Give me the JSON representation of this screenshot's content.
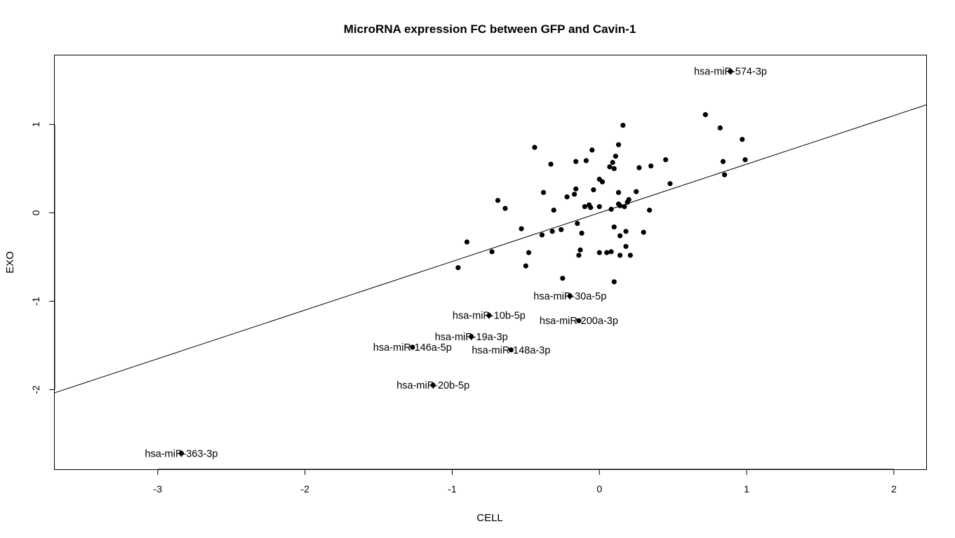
{
  "chart_data": {
    "type": "scatter",
    "title": "MicroRNA expression FC between GFP and Cavin-1",
    "xlabel": "CELL",
    "ylabel": "EXO",
    "xlim": [
      -3.7,
      2.22
    ],
    "ylim": [
      -2.9,
      1.78
    ],
    "xticks": [
      -3,
      -2,
      -1,
      0,
      1,
      2
    ],
    "yticks": [
      -2,
      -1,
      0,
      1
    ],
    "regression_line": {
      "intercept": 0.0,
      "slope": 0.55
    },
    "labeled_points": [
      {
        "label": "hsa-miR-574-3p",
        "x": 0.89,
        "y": 1.6
      },
      {
        "label": "hsa-miR-30a-5p",
        "x": -0.2,
        "y": -0.94
      },
      {
        "label": "hsa-miR-10b-5p",
        "x": -0.75,
        "y": -1.16
      },
      {
        "label": "hsa-miR-200a-3p",
        "x": -0.14,
        "y": -1.22
      },
      {
        "label": "hsa-miR-19a-3p",
        "x": -0.87,
        "y": -1.4
      },
      {
        "label": "hsa-miR-146a-5p",
        "x": -1.27,
        "y": -1.52
      },
      {
        "label": "hsa-miR-148a-3p",
        "x": -0.6,
        "y": -1.55
      },
      {
        "label": "hsa-miR-20b-5p",
        "x": -1.13,
        "y": -1.95
      },
      {
        "label": "hsa-miR-363-3p",
        "x": -2.84,
        "y": -2.72
      }
    ],
    "points": [
      {
        "x": 0.72,
        "y": 1.11
      },
      {
        "x": 0.82,
        "y": 0.96
      },
      {
        "x": 0.16,
        "y": 0.99
      },
      {
        "x": 0.97,
        "y": 0.83
      },
      {
        "x": 0.13,
        "y": 0.77
      },
      {
        "x": -0.44,
        "y": 0.74
      },
      {
        "x": -0.05,
        "y": 0.71
      },
      {
        "x": 0.11,
        "y": 0.64
      },
      {
        "x": 0.45,
        "y": 0.6
      },
      {
        "x": 0.99,
        "y": 0.6
      },
      {
        "x": -0.09,
        "y": 0.59
      },
      {
        "x": -0.16,
        "y": 0.58
      },
      {
        "x": 0.84,
        "y": 0.58
      },
      {
        "x": 0.09,
        "y": 0.57
      },
      {
        "x": -0.33,
        "y": 0.55
      },
      {
        "x": 0.35,
        "y": 0.53
      },
      {
        "x": 0.07,
        "y": 0.52
      },
      {
        "x": 0.27,
        "y": 0.51
      },
      {
        "x": 0.1,
        "y": 0.5
      },
      {
        "x": 0.85,
        "y": 0.43
      },
      {
        "x": 0.0,
        "y": 0.38
      },
      {
        "x": 0.02,
        "y": 0.35
      },
      {
        "x": 0.48,
        "y": 0.33
      },
      {
        "x": -0.16,
        "y": 0.27
      },
      {
        "x": -0.04,
        "y": 0.26
      },
      {
        "x": 0.25,
        "y": 0.24
      },
      {
        "x": -0.38,
        "y": 0.23
      },
      {
        "x": 0.13,
        "y": 0.23
      },
      {
        "x": -0.17,
        "y": 0.21
      },
      {
        "x": -0.22,
        "y": 0.18
      },
      {
        "x": 0.2,
        "y": 0.15
      },
      {
        "x": -0.69,
        "y": 0.14
      },
      {
        "x": 0.19,
        "y": 0.12
      },
      {
        "x": 0.13,
        "y": 0.1
      },
      {
        "x": -0.07,
        "y": 0.09
      },
      {
        "x": 0.14,
        "y": 0.08
      },
      {
        "x": -0.1,
        "y": 0.07
      },
      {
        "x": 0.0,
        "y": 0.07
      },
      {
        "x": 0.17,
        "y": 0.07
      },
      {
        "x": -0.06,
        "y": 0.06
      },
      {
        "x": -0.64,
        "y": 0.05
      },
      {
        "x": 0.08,
        "y": 0.04
      },
      {
        "x": -0.31,
        "y": 0.03
      },
      {
        "x": 0.34,
        "y": 0.03
      },
      {
        "x": -0.15,
        "y": -0.12
      },
      {
        "x": 0.1,
        "y": -0.16
      },
      {
        "x": -0.53,
        "y": -0.18
      },
      {
        "x": -0.26,
        "y": -0.19
      },
      {
        "x": -0.32,
        "y": -0.21
      },
      {
        "x": 0.18,
        "y": -0.21
      },
      {
        "x": 0.3,
        "y": -0.22
      },
      {
        "x": -0.12,
        "y": -0.23
      },
      {
        "x": -0.39,
        "y": -0.25
      },
      {
        "x": 0.14,
        "y": -0.26
      },
      {
        "x": -0.9,
        "y": -0.33
      },
      {
        "x": 0.18,
        "y": -0.38
      },
      {
        "x": -0.13,
        "y": -0.42
      },
      {
        "x": -0.73,
        "y": -0.44
      },
      {
        "x": 0.08,
        "y": -0.44
      },
      {
        "x": -0.48,
        "y": -0.45
      },
      {
        "x": 0.0,
        "y": -0.45
      },
      {
        "x": 0.05,
        "y": -0.45
      },
      {
        "x": -0.14,
        "y": -0.48
      },
      {
        "x": 0.14,
        "y": -0.48
      },
      {
        "x": 0.21,
        "y": -0.48
      },
      {
        "x": -0.5,
        "y": -0.6
      },
      {
        "x": -0.96,
        "y": -0.62
      },
      {
        "x": -0.25,
        "y": -0.74
      },
      {
        "x": 0.1,
        "y": -0.78
      }
    ]
  }
}
